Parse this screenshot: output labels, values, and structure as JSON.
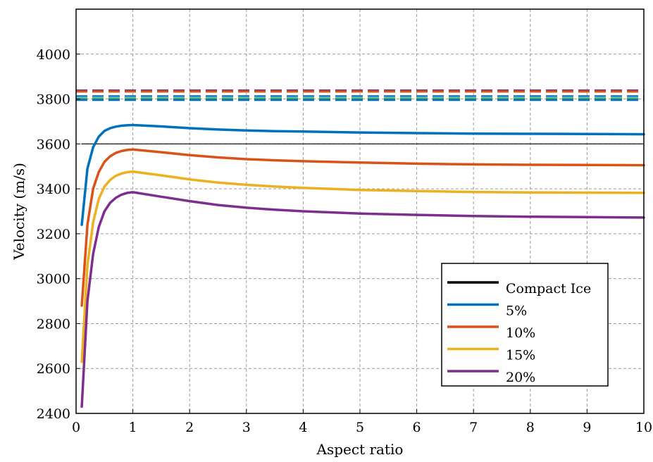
{
  "chart_data": {
    "type": "line",
    "xlabel": "Aspect ratio",
    "ylabel": "Velocity (m/s)",
    "xlim": [
      0,
      10
    ],
    "ylim": [
      2400,
      4200
    ],
    "x_ticks": [
      0,
      1,
      2,
      3,
      4,
      5,
      6,
      7,
      8,
      9,
      10
    ],
    "y_ticks": [
      2400,
      2600,
      2800,
      3000,
      3200,
      3400,
      3600,
      3800,
      4000
    ],
    "grid": true,
    "legend_position": "bottom-right",
    "x": [
      0.1,
      0.2,
      0.3,
      0.4,
      0.5,
      0.6,
      0.7,
      0.8,
      0.9,
      1,
      1.5,
      2,
      2.5,
      3,
      3.5,
      4,
      5,
      6,
      7,
      8,
      9,
      10
    ],
    "series": [
      {
        "name": "Compact Ice",
        "color": "#000000",
        "values": [
          3600,
          3600,
          3600,
          3600,
          3600,
          3600,
          3600,
          3600,
          3600,
          3600,
          3600,
          3600,
          3600,
          3600,
          3600,
          3600,
          3600,
          3600,
          3600,
          3600,
          3600,
          3600
        ]
      },
      {
        "name": "5%",
        "color": "#0072BD",
        "values": [
          3240,
          3490,
          3585,
          3632,
          3658,
          3670,
          3677,
          3681,
          3683,
          3684,
          3678,
          3670,
          3664,
          3660,
          3657,
          3655,
          3651,
          3648,
          3646,
          3645,
          3644,
          3643
        ]
      },
      {
        "name": "10%",
        "color": "#D95319",
        "values": [
          2880,
          3240,
          3400,
          3475,
          3520,
          3545,
          3560,
          3568,
          3573,
          3575,
          3563,
          3550,
          3540,
          3532,
          3527,
          3523,
          3517,
          3512,
          3509,
          3507,
          3506,
          3505
        ]
      },
      {
        "name": "15%",
        "color": "#EDB120",
        "values": [
          2630,
          3060,
          3250,
          3355,
          3410,
          3440,
          3458,
          3468,
          3474,
          3477,
          3460,
          3442,
          3428,
          3418,
          3410,
          3404,
          3395,
          3390,
          3386,
          3384,
          3383,
          3382
        ]
      },
      {
        "name": "20%",
        "color": "#7E2F8E",
        "values": [
          2430,
          2900,
          3110,
          3230,
          3300,
          3338,
          3360,
          3374,
          3382,
          3385,
          3365,
          3345,
          3328,
          3316,
          3307,
          3300,
          3290,
          3284,
          3279,
          3276,
          3274,
          3272
        ]
      }
    ],
    "reference_lines": [
      {
        "color": "#7E2F8E",
        "value": 3838,
        "style": "dashed"
      },
      {
        "color": "#D95319",
        "value": 3833,
        "style": "dashed"
      },
      {
        "color": "#0072BD",
        "value": 3812,
        "style": "dashed"
      },
      {
        "color": "#4DBEEE",
        "value": 3806,
        "style": "dashed"
      },
      {
        "color": "#77AC30",
        "value": 3801,
        "style": "dashed"
      },
      {
        "color": "#0072BD",
        "value": 3796,
        "style": "dashed"
      }
    ]
  }
}
